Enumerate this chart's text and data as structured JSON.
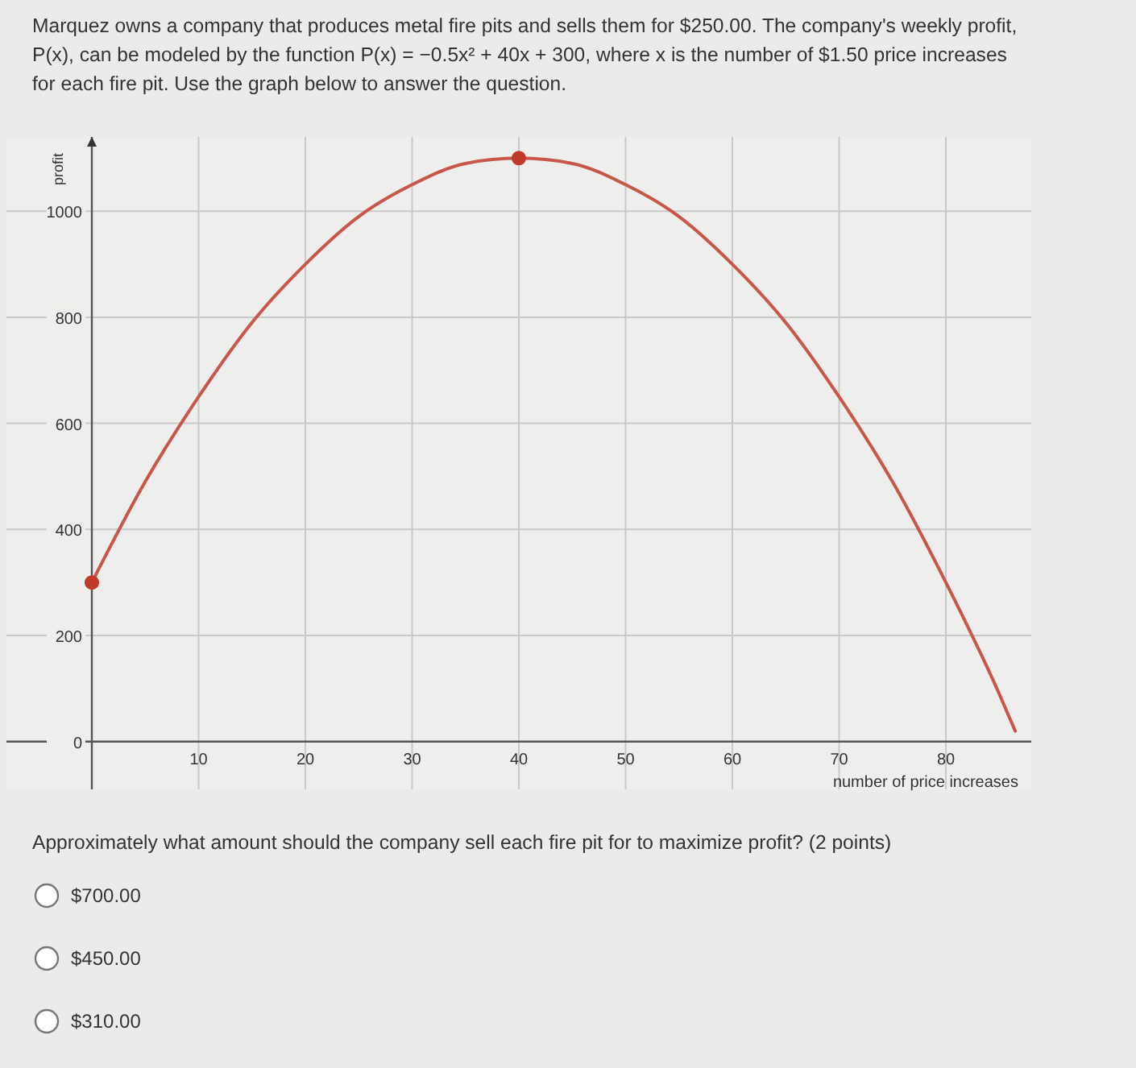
{
  "chart_data": {
    "type": "line",
    "title": "Marquez owns a company that produces metal fire pits and sells them for $250.00. The company's weekly profit, P(x), can be modeled by the function P(x) = −0.5x² + 40x + 300, where x is the number of $1.50 price increases for each fire pit. Use the graph below to answer the question.",
    "xlabel": "number of price increases",
    "ylabel": "profit",
    "series": [
      {
        "color": "#c8564a",
        "marker": "none",
        "x": [
          0,
          5,
          10,
          15,
          20,
          25,
          30,
          35,
          40,
          45,
          50,
          55,
          60,
          65,
          70,
          75,
          80,
          85,
          86.5
        ],
        "values": [
          300,
          490,
          650,
          790,
          900,
          990,
          1050,
          1090,
          1100,
          1090,
          1050,
          990,
          900,
          790,
          650,
          490,
          300,
          90,
          20
        ]
      },
      {
        "type": "scatter",
        "color": "#c0392b",
        "marker": "circle",
        "x": [
          0,
          40
        ],
        "values": [
          300,
          1100
        ]
      }
    ],
    "xlim": [
      -8,
      88
    ],
    "ylim": [
      -90,
      1140
    ],
    "xticks": [
      10,
      20,
      30,
      40,
      50,
      60,
      70,
      80
    ],
    "yticks": [
      0,
      200,
      400,
      600,
      800,
      1000
    ],
    "grid": true,
    "annotations": [
      "Approximately what amount should the company sell each fire pit for to maximize profit? (2 points)",
      "$700.00",
      "$450.00",
      "$310.00"
    ]
  }
}
